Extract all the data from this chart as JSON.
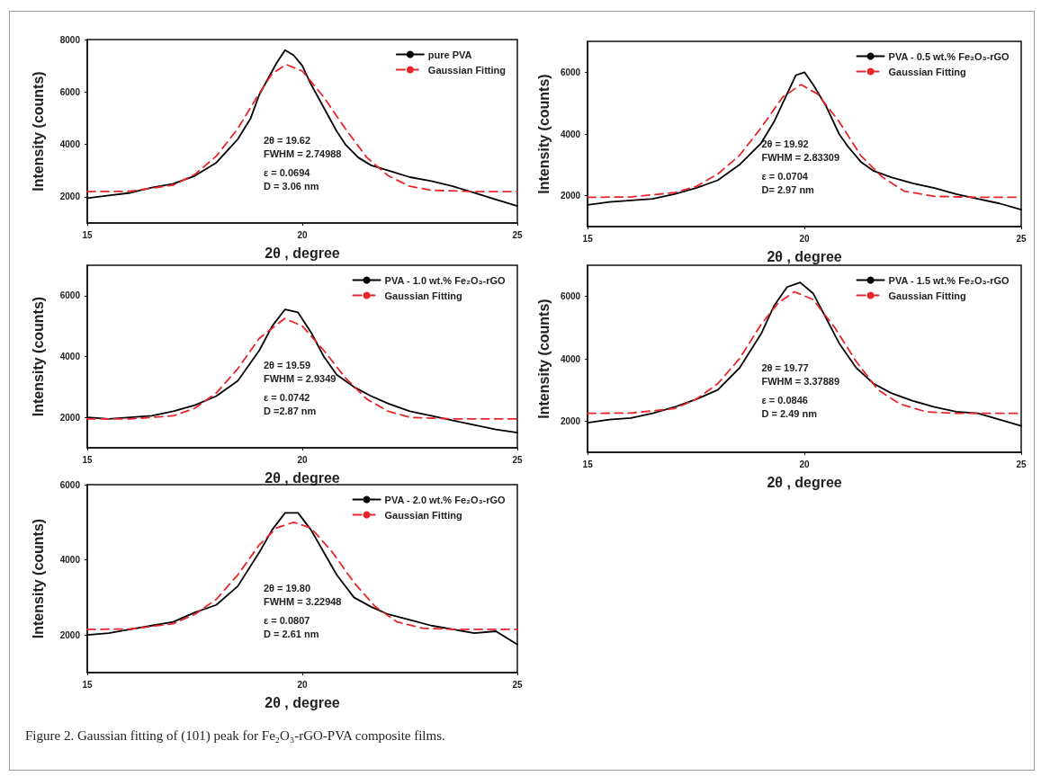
{
  "chart_data": [
    {
      "type": "line",
      "xlabel": "2θ , degree",
      "ylabel": "Intensity (counts)",
      "xlim": [
        15,
        25
      ],
      "xticks": [
        15,
        20,
        25
      ],
      "ylim": [
        1000,
        8000
      ],
      "yticks": [
        2000,
        4000,
        6000,
        8000
      ],
      "legend": "top right",
      "marker": "none",
      "grid": false,
      "series": [
        {
          "name": "pure PVA",
          "color": "#000000",
          "line_style": "solid",
          "x": [
            15,
            15.5,
            16,
            16.5,
            17,
            17.5,
            18,
            18.5,
            18.8,
            19,
            19.2,
            19.4,
            19.6,
            19.8,
            20,
            20.2,
            20.5,
            20.8,
            21,
            21.3,
            21.6,
            22,
            22.5,
            23,
            23.5,
            24,
            24.5,
            25
          ],
          "values": [
            1950,
            2050,
            2150,
            2350,
            2500,
            2800,
            3300,
            4200,
            5000,
            5900,
            6500,
            7100,
            7600,
            7400,
            7000,
            6300,
            5400,
            4500,
            4000,
            3500,
            3200,
            3000,
            2750,
            2600,
            2400,
            2150,
            1900,
            1650
          ]
        },
        {
          "name": "Gaussian Fitting",
          "color": "#e8262a",
          "line_style": "dashed",
          "x": [
            15,
            16,
            17,
            17.5,
            18,
            18.5,
            19,
            19.3,
            19.62,
            20,
            20.5,
            21,
            21.5,
            22,
            22.5,
            23,
            24,
            25
          ],
          "values": [
            2200,
            2210,
            2450,
            2850,
            3550,
            4600,
            5950,
            6700,
            7050,
            6800,
            5800,
            4600,
            3500,
            2800,
            2400,
            2250,
            2200,
            2200
          ]
        }
      ],
      "annotations": [
        "2θ = 19.62",
        "FWHM = 2.74988",
        "ε = 0.0694",
        "D = 3.06 nm"
      ]
    },
    {
      "type": "line",
      "xlabel": "2θ , degree",
      "ylabel": "Intensity (counts)",
      "xlim": [
        15,
        25
      ],
      "xticks": [
        15,
        20,
        25
      ],
      "ylim": [
        1000,
        7000
      ],
      "yticks": [
        2000,
        4000,
        6000
      ],
      "legend": "top right",
      "marker": "none",
      "grid": false,
      "series": [
        {
          "name": "PVA - 0.5 wt.% Fe₂O₃-rGO",
          "color": "#000000",
          "line_style": "solid",
          "x": [
            15,
            15.5,
            16,
            16.5,
            17,
            17.5,
            18,
            18.5,
            19,
            19.3,
            19.6,
            19.8,
            20,
            20.2,
            20.5,
            20.8,
            21,
            21.3,
            21.6,
            22,
            22.5,
            23,
            23.5,
            24,
            24.5,
            25
          ],
          "values": [
            1700,
            1800,
            1850,
            1900,
            2050,
            2250,
            2500,
            3000,
            3700,
            4400,
            5300,
            5900,
            6000,
            5600,
            4900,
            4000,
            3600,
            3100,
            2800,
            2600,
            2400,
            2250,
            2050,
            1900,
            1750,
            1550
          ]
        },
        {
          "name": "Gaussian Fitting",
          "color": "#e8262a",
          "line_style": "dashed",
          "x": [
            15,
            16,
            17,
            17.5,
            18,
            18.5,
            19,
            19.5,
            19.92,
            20.3,
            20.8,
            21.3,
            21.8,
            22.3,
            23,
            24,
            25
          ],
          "values": [
            1950,
            1960,
            2100,
            2300,
            2700,
            3300,
            4200,
            5200,
            5600,
            5300,
            4400,
            3300,
            2600,
            2150,
            1980,
            1950,
            1950
          ]
        }
      ],
      "annotations": [
        "2θ = 19.92",
        "FWHM = 2.83309",
        "ε = 0.0704",
        "D= 2.97 nm"
      ]
    },
    {
      "type": "line",
      "xlabel": "2θ , degree",
      "ylabel": "Intensity (counts)",
      "xlim": [
        15,
        25
      ],
      "xticks": [
        15,
        20,
        25
      ],
      "ylim": [
        1000,
        7000
      ],
      "yticks": [
        2000,
        4000,
        6000
      ],
      "legend": "top right",
      "marker": "none",
      "grid": false,
      "series": [
        {
          "name": "PVA - 1.0 wt.% Fe₂O₃-rGO",
          "color": "#000000",
          "line_style": "solid",
          "x": [
            15,
            15.5,
            16,
            16.5,
            17,
            17.5,
            18,
            18.5,
            19,
            19.3,
            19.6,
            19.9,
            20.2,
            20.5,
            20.8,
            21.2,
            21.6,
            22,
            22.5,
            23,
            23.5,
            24,
            24.5,
            25
          ],
          "values": [
            2000,
            1950,
            2000,
            2050,
            2200,
            2400,
            2700,
            3200,
            4200,
            5000,
            5550,
            5450,
            4800,
            4000,
            3400,
            3000,
            2700,
            2450,
            2200,
            2050,
            1900,
            1750,
            1600,
            1500
          ]
        },
        {
          "name": "Gaussian Fitting",
          "color": "#e8262a",
          "line_style": "dashed",
          "x": [
            15,
            16,
            17,
            17.5,
            18,
            18.5,
            19,
            19.59,
            20,
            20.5,
            21,
            21.5,
            22,
            22.5,
            23.5,
            25
          ],
          "values": [
            1950,
            1950,
            2050,
            2300,
            2800,
            3600,
            4600,
            5250,
            5000,
            4200,
            3300,
            2600,
            2200,
            2000,
            1950,
            1950
          ]
        }
      ],
      "annotations": [
        "2θ = 19.59",
        "FWHM = 2.9349",
        "ε = 0.0742",
        "D =2.87 nm"
      ]
    },
    {
      "type": "line",
      "xlabel": "2θ , degree",
      "ylabel": "Intensity (counts)",
      "xlim": [
        15,
        25
      ],
      "xticks": [
        15,
        20,
        25
      ],
      "ylim": [
        1000,
        7000
      ],
      "yticks": [
        2000,
        4000,
        6000
      ],
      "legend": "top right",
      "marker": "none",
      "grid": false,
      "series": [
        {
          "name": "PVA - 1.5 wt.% Fe₂O₃-rGO",
          "color": "#000000",
          "line_style": "solid",
          "x": [
            15,
            15.5,
            16,
            16.5,
            17,
            17.5,
            18,
            18.5,
            19,
            19.3,
            19.6,
            19.9,
            20.2,
            20.5,
            20.8,
            21.2,
            21.6,
            22,
            22.5,
            23,
            23.5,
            24,
            24.5,
            25
          ],
          "values": [
            1950,
            2050,
            2100,
            2250,
            2450,
            2700,
            3000,
            3700,
            4800,
            5700,
            6300,
            6450,
            6100,
            5300,
            4500,
            3700,
            3200,
            2900,
            2650,
            2450,
            2300,
            2250,
            2050,
            1850
          ]
        },
        {
          "name": "Gaussian Fitting",
          "color": "#e8262a",
          "line_style": "dashed",
          "x": [
            15,
            16,
            17,
            17.5,
            18,
            18.5,
            19,
            19.4,
            19.77,
            20.2,
            20.7,
            21.2,
            21.7,
            22.2,
            22.8,
            23.5,
            25
          ],
          "values": [
            2250,
            2260,
            2400,
            2700,
            3200,
            4000,
            5100,
            5800,
            6150,
            5900,
            5000,
            3900,
            3000,
            2550,
            2300,
            2250,
            2250
          ]
        }
      ],
      "annotations": [
        "2θ = 19.77",
        "FWHM = 3.37889",
        "ε = 0.0846",
        "D = 2.49 nm"
      ]
    },
    {
      "type": "line",
      "xlabel": "2θ , degree",
      "ylabel": "Intensity (counts)",
      "xlim": [
        15,
        25
      ],
      "xticks": [
        15,
        20,
        25
      ],
      "ylim": [
        1000,
        6000
      ],
      "yticks": [
        2000,
        4000,
        6000
      ],
      "legend": "top right",
      "marker": "none",
      "grid": false,
      "series": [
        {
          "name": "PVA - 2.0 wt.% Fe₂O₃-rGO",
          "color": "#000000",
          "line_style": "solid",
          "x": [
            15,
            15.5,
            16,
            16.5,
            17,
            17.5,
            18,
            18.5,
            19,
            19.3,
            19.6,
            19.9,
            20.2,
            20.5,
            20.8,
            21.2,
            21.6,
            22,
            22.5,
            23,
            23.5,
            24,
            24.5,
            25
          ],
          "values": [
            2000,
            2050,
            2150,
            2250,
            2350,
            2600,
            2800,
            3300,
            4200,
            4800,
            5250,
            5250,
            4800,
            4200,
            3600,
            3000,
            2750,
            2550,
            2400,
            2250,
            2150,
            2050,
            2100,
            1750
          ]
        },
        {
          "name": "Gaussian Fitting",
          "color": "#e8262a",
          "line_style": "dashed",
          "x": [
            15,
            16,
            17,
            17.5,
            18,
            18.5,
            19,
            19.4,
            19.8,
            20.2,
            20.7,
            21.2,
            21.7,
            22.2,
            22.8,
            23.5,
            25
          ],
          "values": [
            2150,
            2160,
            2300,
            2550,
            2950,
            3600,
            4400,
            4850,
            5000,
            4850,
            4200,
            3400,
            2750,
            2350,
            2180,
            2150,
            2150
          ]
        }
      ],
      "annotations": [
        "2θ = 19.80",
        "FWHM = 3.22948",
        "ε = 0.0807",
        "D = 2.61 nm"
      ]
    },
    {
      "type": "other",
      "annotations": [
        "Figure 2. Gaussian fitting of (101) peak for Fe₂O₃-rGO-PVA composite films."
      ]
    }
  ]
}
